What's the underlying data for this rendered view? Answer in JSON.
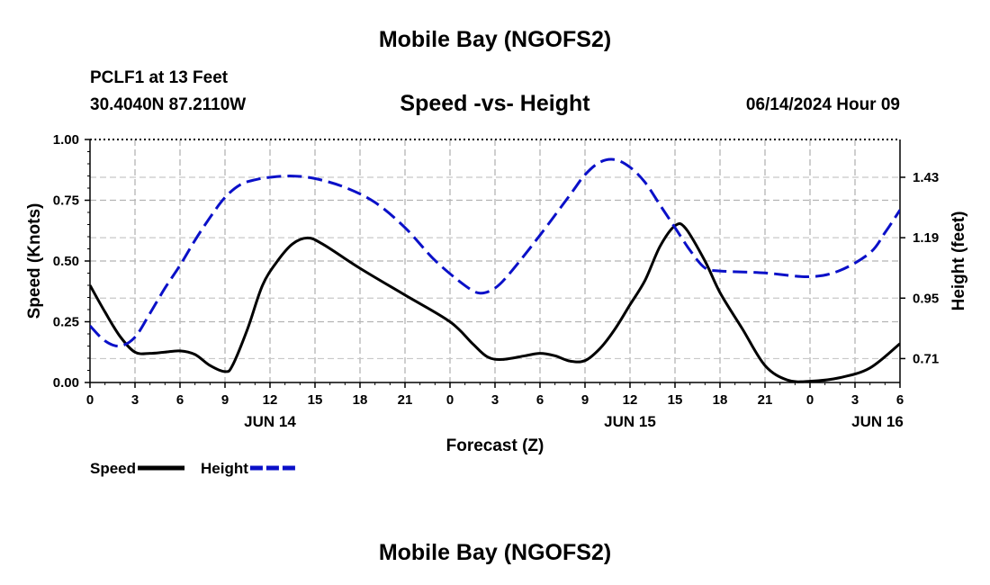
{
  "page": {
    "title_top": "Mobile Bay (NGOFS2)",
    "title_bottom": "Mobile Bay (NGOFS2)",
    "station": "PCLF1 at 13 Feet",
    "coords": "30.4040N  87.2110W",
    "datetime": "06/14/2024 Hour 09"
  },
  "chart_data": {
    "type": "line",
    "title": "Speed -vs- Height",
    "xlabel": "Forecast (Z)",
    "ylabel": "Speed (Knots)",
    "y2label": "Height (feet)",
    "x_hours_range": [
      0,
      54
    ],
    "x_ticks": [
      {
        "hour": 0,
        "label": "0"
      },
      {
        "hour": 3,
        "label": "3"
      },
      {
        "hour": 6,
        "label": "6"
      },
      {
        "hour": 9,
        "label": "9"
      },
      {
        "hour": 12,
        "label": "12"
      },
      {
        "hour": 15,
        "label": "15"
      },
      {
        "hour": 18,
        "label": "18"
      },
      {
        "hour": 21,
        "label": "21"
      },
      {
        "hour": 24,
        "label": "0"
      },
      {
        "hour": 27,
        "label": "3"
      },
      {
        "hour": 30,
        "label": "6"
      },
      {
        "hour": 33,
        "label": "9"
      },
      {
        "hour": 36,
        "label": "12"
      },
      {
        "hour": 39,
        "label": "15"
      },
      {
        "hour": 42,
        "label": "18"
      },
      {
        "hour": 45,
        "label": "21"
      },
      {
        "hour": 48,
        "label": "0"
      },
      {
        "hour": 51,
        "label": "3"
      },
      {
        "hour": 54,
        "label": "6"
      }
    ],
    "date_labels": [
      {
        "hour": 12,
        "label": "JUN 14"
      },
      {
        "hour": 36,
        "label": "JUN 15"
      },
      {
        "hour": 52.5,
        "label": "JUN 16"
      }
    ],
    "ylim": [
      0,
      1.0
    ],
    "y_ticks": [
      {
        "value": 0.0,
        "label": "0.00"
      },
      {
        "value": 0.25,
        "label": "0.25"
      },
      {
        "value": 0.5,
        "label": "0.50"
      },
      {
        "value": 0.75,
        "label": "0.75"
      },
      {
        "value": 1.0,
        "label": "1.00"
      }
    ],
    "y2lim": [
      0.615,
      1.58
    ],
    "y2_ticks": [
      {
        "value": 0.71,
        "label": "0.71"
      },
      {
        "value": 0.95,
        "label": "0.95"
      },
      {
        "value": 1.19,
        "label": "1.19"
      },
      {
        "value": 1.43,
        "label": "1.43"
      }
    ],
    "series": [
      {
        "name": "Speed",
        "axis": "left",
        "color": "#000000",
        "dash": "solid",
        "points": [
          [
            0,
            0.4
          ],
          [
            1,
            0.29
          ],
          [
            2,
            0.19
          ],
          [
            3,
            0.125
          ],
          [
            4,
            0.12
          ],
          [
            5,
            0.125
          ],
          [
            6,
            0.13
          ],
          [
            7,
            0.115
          ],
          [
            8,
            0.07
          ],
          [
            9,
            0.045
          ],
          [
            9.5,
            0.07
          ],
          [
            10.5,
            0.22
          ],
          [
            11.5,
            0.4
          ],
          [
            12.5,
            0.5
          ],
          [
            13.5,
            0.57
          ],
          [
            14.5,
            0.595
          ],
          [
            15.5,
            0.57
          ],
          [
            18,
            0.47
          ],
          [
            21,
            0.36
          ],
          [
            24,
            0.25
          ],
          [
            25.5,
            0.16
          ],
          [
            26.5,
            0.105
          ],
          [
            27.5,
            0.095
          ],
          [
            29,
            0.11
          ],
          [
            30,
            0.12
          ],
          [
            31,
            0.11
          ],
          [
            32,
            0.088
          ],
          [
            33,
            0.09
          ],
          [
            34,
            0.14
          ],
          [
            35,
            0.22
          ],
          [
            36,
            0.32
          ],
          [
            37,
            0.42
          ],
          [
            38,
            0.56
          ],
          [
            39,
            0.645
          ],
          [
            39.7,
            0.635
          ],
          [
            41,
            0.5
          ],
          [
            42,
            0.37
          ],
          [
            43.5,
            0.22
          ],
          [
            45,
            0.07
          ],
          [
            46.5,
            0.01
          ],
          [
            48,
            0.005
          ],
          [
            50,
            0.02
          ],
          [
            52,
            0.06
          ],
          [
            54,
            0.16
          ]
        ]
      },
      {
        "name": "Height",
        "axis": "right",
        "color": "#0a10c8",
        "dash": "dashed",
        "points": [
          [
            0,
            0.84
          ],
          [
            1,
            0.78
          ],
          [
            2,
            0.76
          ],
          [
            3,
            0.795
          ],
          [
            4,
            0.89
          ],
          [
            5,
            0.99
          ],
          [
            6,
            1.08
          ],
          [
            7,
            1.18
          ],
          [
            8,
            1.27
          ],
          [
            9,
            1.35
          ],
          [
            10,
            1.4
          ],
          [
            11,
            1.42
          ],
          [
            12,
            1.43
          ],
          [
            13.5,
            1.435
          ],
          [
            15,
            1.425
          ],
          [
            17,
            1.39
          ],
          [
            19,
            1.33
          ],
          [
            21,
            1.23
          ],
          [
            23,
            1.1
          ],
          [
            25,
            1.0
          ],
          [
            26,
            0.97
          ],
          [
            27,
            0.99
          ],
          [
            28,
            1.05
          ],
          [
            30,
            1.2
          ],
          [
            32,
            1.36
          ],
          [
            33,
            1.44
          ],
          [
            34,
            1.49
          ],
          [
            35,
            1.5
          ],
          [
            36,
            1.47
          ],
          [
            37,
            1.41
          ],
          [
            38,
            1.32
          ],
          [
            39,
            1.23
          ],
          [
            40,
            1.14
          ],
          [
            41,
            1.07
          ],
          [
            42,
            1.058
          ],
          [
            45,
            1.05
          ],
          [
            48,
            1.035
          ],
          [
            50,
            1.06
          ],
          [
            52,
            1.13
          ],
          [
            53,
            1.21
          ],
          [
            54,
            1.3
          ]
        ]
      }
    ],
    "legend": "bottom-left"
  }
}
